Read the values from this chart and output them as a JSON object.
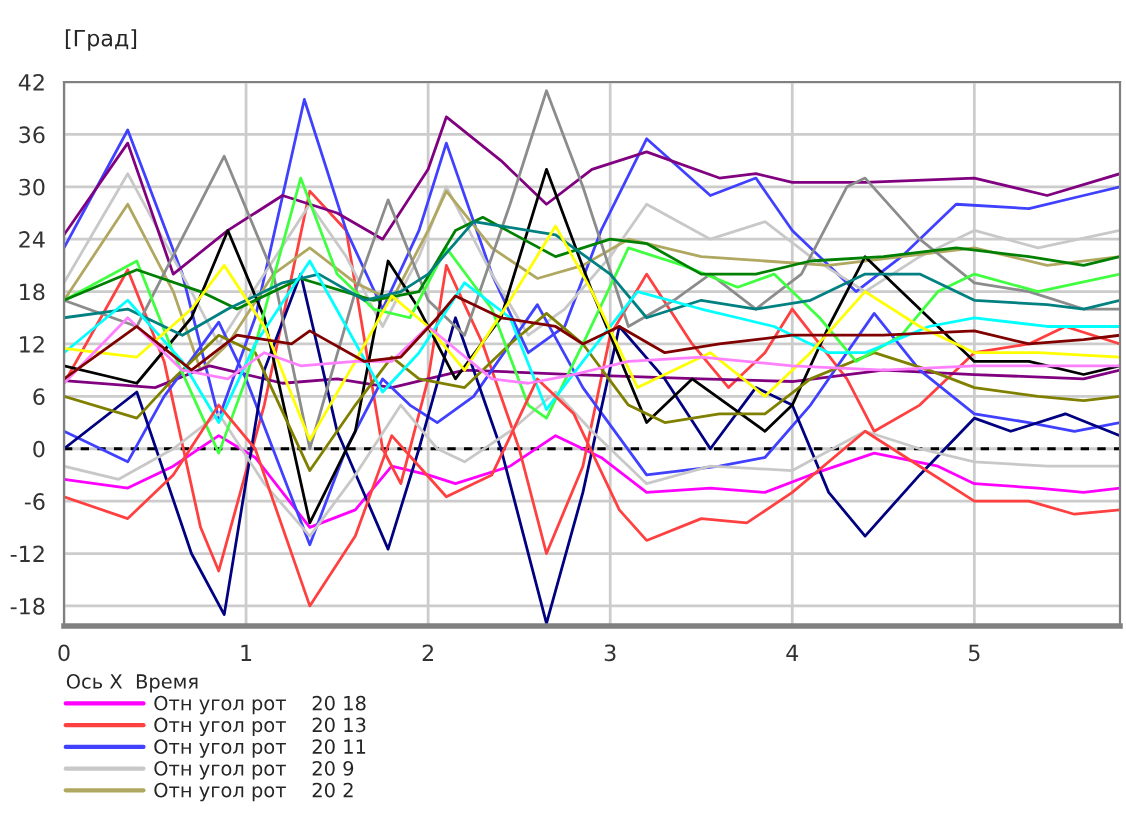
{
  "chart_data": {
    "type": "line",
    "ylabel": "[Град]",
    "legend_title": "Ось X  Время",
    "xlim": [
      0,
      5.8
    ],
    "xticks": [
      0,
      1,
      2,
      3,
      4,
      5
    ],
    "ylim": [
      -20.3,
      42
    ],
    "yticks": [
      -18,
      -12,
      -6,
      0,
      6,
      12,
      18,
      24,
      30,
      36,
      42
    ],
    "grid": true,
    "legend": "bottom",
    "ref_lines": [
      {
        "axis": "y",
        "value": 0,
        "color": "#000000",
        "line_style": "dashed"
      }
    ],
    "series": [
      {
        "name": "Отн угол рот    20 18",
        "color": "#ff00ff",
        "x": [
          0,
          0.35,
          0.6,
          0.85,
          1.05,
          1.35,
          1.6,
          1.8,
          2.0,
          2.15,
          2.45,
          2.7,
          2.95,
          3.2,
          3.55,
          3.85,
          4.1,
          4.45,
          4.8,
          5.0,
          5.35,
          5.6,
          5.8
        ],
        "values": [
          -3.5,
          -4.5,
          -2,
          1.5,
          -1,
          -9,
          -7,
          -2,
          -3,
          -4,
          -2,
          1.5,
          -1,
          -5,
          -4.5,
          -5,
          -3,
          -0.5,
          -2,
          -4,
          -4.5,
          -5,
          -4.5
        ]
      },
      {
        "name": "Отн угол рот    20 13",
        "color": "#ff4040",
        "x": [
          0,
          0.35,
          0.55,
          0.75,
          0.85,
          1.1,
          1.35,
          1.55,
          1.75,
          1.85,
          2.0,
          2.1,
          2.3,
          2.5,
          2.65,
          2.85,
          3.0,
          3.2,
          3.45,
          3.65,
          3.85,
          4.0,
          4.3,
          4.45,
          4.7,
          5.0,
          5.3,
          5.5,
          5.8
        ],
        "values": [
          7.5,
          20.5,
          10,
          -9,
          -14,
          5,
          29.5,
          25,
          0,
          -4,
          8,
          21,
          12,
          0,
          -12,
          -2,
          13,
          20,
          12,
          7,
          11,
          16,
          8,
          2,
          5,
          11,
          12,
          14,
          12
        ]
      },
      {
        "name": "Отн угол рот    20 11",
        "color": "#4040ff",
        "x": [
          0,
          0.35,
          0.65,
          0.85,
          1.05,
          1.32,
          1.55,
          1.75,
          1.95,
          2.1,
          2.35,
          2.55,
          2.75,
          2.95,
          3.2,
          3.55,
          3.8,
          4.0,
          4.35,
          4.6,
          4.9,
          5.3,
          5.6,
          5.8
        ],
        "values": [
          23,
          36.5,
          20,
          3.5,
          15,
          40,
          25,
          16,
          25,
          35,
          20,
          11,
          14,
          25,
          35.5,
          29,
          31,
          25,
          18,
          22,
          28,
          27.5,
          29,
          30
        ]
      },
      {
        "name": "Отн угол рот    20 9",
        "color": "#c8c8c8",
        "x": [
          0,
          0.35,
          0.7,
          0.85,
          1.1,
          1.35,
          1.55,
          1.75,
          1.95,
          2.1,
          2.35,
          2.55,
          2.75,
          3.0,
          3.2,
          3.55,
          3.85,
          4.1,
          4.4,
          4.7,
          5.0,
          5.35,
          5.8
        ],
        "values": [
          19,
          31.5,
          18,
          12,
          20,
          28,
          22,
          14,
          22,
          30,
          20,
          13,
          16,
          22,
          28,
          24,
          26,
          22,
          18,
          22,
          25,
          23,
          25
        ]
      },
      {
        "name": "Отн угол рот    20 2",
        "color": "#b0a860",
        "x": [
          0,
          0.35,
          0.6,
          0.75,
          0.9,
          1.15,
          1.35,
          1.6,
          1.8,
          2.0,
          2.1,
          2.35,
          2.6,
          2.85,
          3.1,
          3.5,
          3.85,
          4.2,
          4.6,
          5.0,
          5.4,
          5.8
        ],
        "values": [
          17,
          28,
          18,
          9,
          12,
          20,
          23,
          19,
          17,
          25,
          29.5,
          23,
          19.5,
          21,
          24,
          22,
          21.5,
          21,
          22,
          23,
          21,
          22
        ]
      },
      {
        "color": "#800080",
        "x": [
          0,
          0.35,
          0.6,
          0.9,
          1.2,
          1.5,
          1.75,
          2.0,
          2.1,
          2.4,
          2.65,
          2.9,
          3.2,
          3.6,
          3.8,
          4.0,
          4.4,
          5.0,
          5.4,
          5.8
        ],
        "values": [
          24.5,
          35,
          20,
          25,
          29,
          27,
          24,
          32,
          38,
          33,
          28,
          32,
          34,
          31,
          31.5,
          30.5,
          30.5,
          31,
          29,
          31.5
        ]
      },
      {
        "color": "#800080",
        "x": [
          0,
          0.5,
          0.8,
          1.2,
          1.5,
          1.8,
          2.2,
          2.8,
          3.5,
          4.0,
          4.5,
          5.0,
          5.6,
          5.8
        ],
        "values": [
          7.8,
          7,
          9.5,
          7.5,
          8,
          7,
          9,
          8.5,
          8,
          7.7,
          9,
          8.5,
          8,
          9
        ]
      },
      {
        "color": "#4040ff",
        "x": [
          0,
          0.35,
          0.55,
          0.85,
          1.0,
          1.35,
          1.55,
          1.75,
          1.9,
          2.05,
          2.25,
          2.6,
          2.85,
          3.2,
          3.6,
          3.85,
          4.1,
          4.45,
          4.7,
          5.0,
          5.3,
          5.55,
          5.8
        ],
        "values": [
          2,
          -1.5,
          6,
          14.5,
          8,
          -11,
          0,
          8,
          5,
          3,
          6,
          16.5,
          7,
          -3,
          -2,
          -1,
          5,
          15.5,
          9,
          4,
          3,
          2,
          3
        ]
      },
      {
        "color": "#000080",
        "x": [
          0,
          0.4,
          0.7,
          0.88,
          1.1,
          1.3,
          1.5,
          1.78,
          1.95,
          2.15,
          2.4,
          2.65,
          2.85,
          3.05,
          3.3,
          3.55,
          3.8,
          4.0,
          4.2,
          4.4,
          4.7,
          5.0,
          5.2,
          5.5,
          5.8
        ],
        "values": [
          0,
          6.5,
          -12,
          -19,
          9,
          20,
          2,
          -11.5,
          0,
          15,
          0,
          -20,
          -5,
          14,
          8,
          0,
          7,
          5,
          -5,
          -10,
          -3,
          3.5,
          2,
          4,
          1.5
        ]
      },
      {
        "color": "#8c8c8c",
        "x": [
          0,
          0.4,
          0.88,
          1.15,
          1.35,
          1.6,
          1.78,
          2.0,
          2.2,
          2.45,
          2.65,
          2.85,
          3.1,
          3.35,
          3.55,
          3.8,
          4.05,
          4.3,
          4.4,
          4.7,
          5.0,
          5.3,
          5.6,
          5.8
        ],
        "values": [
          17,
          14,
          33.5,
          20,
          0,
          18,
          28.5,
          17,
          13,
          28,
          41,
          30,
          14,
          17,
          20,
          16,
          20,
          30,
          31,
          24,
          19,
          18,
          16,
          16
        ]
      },
      {
        "color": "#c8c8c8",
        "x": [
          0,
          0.3,
          0.6,
          0.85,
          1.1,
          1.35,
          1.6,
          1.85,
          2.05,
          2.2,
          2.45,
          2.7,
          2.9,
          3.2,
          3.55,
          4.0,
          4.4,
          4.7,
          5.0,
          5.4,
          5.8
        ],
        "values": [
          -2,
          -3.5,
          0,
          4,
          -4,
          -10,
          -3,
          5,
          0,
          -1.5,
          2,
          6.5,
          2,
          -4,
          -2,
          -2.5,
          2,
          0,
          -1.5,
          -2,
          -2
        ]
      },
      {
        "color": "#000000",
        "x": [
          0,
          0.4,
          0.7,
          0.9,
          1.1,
          1.35,
          1.6,
          1.78,
          1.95,
          2.15,
          2.4,
          2.65,
          2.9,
          3.2,
          3.45,
          3.85,
          4.0,
          4.2,
          4.4,
          4.7,
          5.0,
          5.3,
          5.6,
          5.8
        ],
        "values": [
          9.5,
          7.5,
          15,
          25,
          15,
          -8.5,
          2,
          21.5,
          16,
          8,
          15,
          32,
          18,
          3,
          8,
          2,
          5,
          14,
          22,
          16,
          10,
          10,
          8.5,
          9.5
        ]
      },
      {
        "color": "#808000",
        "x": [
          0,
          0.4,
          0.6,
          0.85,
          1.05,
          1.35,
          1.6,
          1.8,
          1.95,
          2.2,
          2.45,
          2.65,
          2.85,
          3.1,
          3.3,
          3.6,
          3.85,
          4.1,
          4.45,
          4.75,
          5.0,
          5.35,
          5.6,
          5.8
        ],
        "values": [
          6,
          3.5,
          8,
          13,
          11,
          -2.5,
          5,
          10.5,
          8,
          7,
          12,
          15.5,
          12,
          5,
          3,
          4,
          4,
          8,
          11,
          9,
          7,
          6,
          5.5,
          6
        ]
      },
      {
        "color": "#40ff40",
        "x": [
          0,
          0.4,
          0.6,
          0.85,
          1.0,
          1.3,
          1.5,
          1.7,
          1.9,
          2.1,
          2.35,
          2.55,
          2.65,
          2.85,
          3.1,
          3.4,
          3.7,
          3.9,
          4.15,
          4.35,
          4.6,
          4.8,
          5.0,
          5.35,
          5.8
        ],
        "values": [
          17,
          21.5,
          11,
          -0.5,
          8,
          31,
          20,
          16,
          15,
          23,
          16,
          5,
          3.5,
          12,
          23,
          21,
          18.5,
          20,
          15,
          10,
          13,
          18,
          20,
          18,
          20
        ]
      },
      {
        "color": "#008000",
        "x": [
          0,
          0.4,
          0.75,
          0.95,
          1.3,
          1.7,
          1.95,
          2.15,
          2.3,
          2.7,
          3.0,
          3.2,
          3.5,
          3.8,
          4.1,
          4.5,
          4.9,
          5.3,
          5.6,
          5.8
        ],
        "values": [
          17,
          20.5,
          18,
          16,
          19.5,
          17,
          18,
          25,
          26.5,
          22,
          24,
          23.5,
          20,
          20,
          21.5,
          22,
          23,
          22,
          21,
          22
        ]
      },
      {
        "color": "#008080",
        "x": [
          0,
          0.35,
          0.65,
          0.9,
          1.2,
          1.4,
          1.65,
          1.85,
          2.0,
          2.25,
          2.7,
          3.0,
          3.2,
          3.5,
          3.8,
          4.1,
          4.4,
          4.7,
          5.0,
          5.4,
          5.6,
          5.8
        ],
        "values": [
          15,
          16,
          13,
          16,
          19,
          20,
          17,
          18,
          20,
          26,
          24.5,
          20,
          15,
          17,
          16,
          17,
          20,
          20,
          17,
          16.5,
          16,
          17
        ]
      },
      {
        "color": "#00ffff",
        "x": [
          0,
          0.35,
          0.65,
          0.85,
          1.05,
          1.35,
          1.55,
          1.75,
          1.95,
          2.2,
          2.45,
          2.65,
          2.85,
          3.15,
          3.5,
          3.7,
          3.9,
          4.2,
          4.4,
          4.75,
          5.0,
          5.4,
          5.8
        ],
        "values": [
          11,
          17,
          10,
          3,
          12,
          21.5,
          14,
          6.5,
          11,
          19,
          15,
          4.5,
          10,
          18,
          16,
          15,
          14,
          11,
          11,
          14,
          15,
          14,
          14
        ]
      },
      {
        "color": "#ffff00",
        "x": [
          0,
          0.4,
          0.7,
          0.88,
          1.1,
          1.35,
          1.6,
          1.8,
          2.0,
          2.2,
          2.45,
          2.7,
          2.9,
          3.15,
          3.55,
          3.85,
          4.1,
          4.4,
          4.7,
          5.0,
          5.35,
          5.8
        ],
        "values": [
          11.5,
          10.5,
          16,
          21,
          14,
          1,
          10,
          17.5,
          14,
          9,
          17,
          25.5,
          18,
          7,
          11,
          6,
          11,
          18,
          14,
          11,
          11,
          10.5
        ]
      },
      {
        "color": "#ff4040",
        "x": [
          0,
          0.35,
          0.6,
          0.85,
          1.05,
          1.35,
          1.6,
          1.8,
          1.95,
          2.1,
          2.35,
          2.6,
          2.8,
          3.05,
          3.2,
          3.5,
          3.75,
          4.0,
          4.4,
          4.7,
          5.0,
          5.3,
          5.55,
          5.8
        ],
        "values": [
          -5.5,
          -8,
          -3,
          5,
          0,
          -18,
          -10,
          1.5,
          -2,
          -5.5,
          -3,
          8,
          4,
          -7,
          -10.5,
          -8,
          -8.5,
          -5,
          2,
          -2,
          -6,
          -6,
          -7.5,
          -7
        ]
      },
      {
        "color": "#ff80ff",
        "x": [
          0,
          0.35,
          0.65,
          0.9,
          1.1,
          1.3,
          1.6,
          1.8,
          2.0,
          2.35,
          2.55,
          2.8,
          3.1,
          3.5,
          4.0,
          4.5,
          5.0,
          5.5,
          5.8
        ],
        "values": [
          7.5,
          15,
          9,
          8,
          11,
          9.5,
          10,
          10,
          14,
          8,
          7.5,
          8.5,
          10,
          10.5,
          9.5,
          9,
          9.5,
          9.5,
          9.5
        ]
      },
      {
        "color": "#800000",
        "x": [
          0,
          0.4,
          0.7,
          0.95,
          1.25,
          1.35,
          1.65,
          1.85,
          2.05,
          2.15,
          2.4,
          2.7,
          2.85,
          3.05,
          3.3,
          3.6,
          4.0,
          4.5,
          5.0,
          5.3,
          5.6,
          5.8
        ],
        "values": [
          8,
          14,
          9,
          13,
          12,
          13.5,
          10,
          10.5,
          15,
          17.5,
          15,
          14,
          12,
          14,
          11,
          12,
          13,
          13,
          13.5,
          12,
          12.5,
          13
        ]
      }
    ]
  }
}
